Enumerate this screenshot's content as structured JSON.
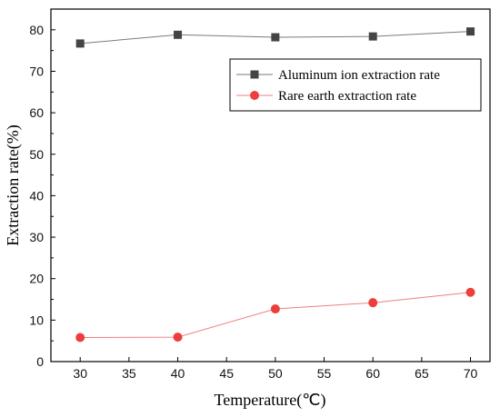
{
  "chart_data": {
    "type": "line",
    "title": "",
    "xlabel": "Temperature(℃)",
    "ylabel": "Extraction  rate(%)",
    "xlim": [
      27,
      72
    ],
    "ylim": [
      0,
      85
    ],
    "x": [
      30,
      40,
      50,
      60,
      70
    ],
    "xticks": [
      30,
      35,
      40,
      45,
      50,
      55,
      60,
      65,
      70
    ],
    "yticks": [
      0,
      10,
      20,
      30,
      40,
      50,
      60,
      70,
      80
    ],
    "grid": false,
    "legend_position": "top-right",
    "series": [
      {
        "name": "Aluminum ion extraction rate",
        "values": [
          76.7,
          78.8,
          78.2,
          78.4,
          79.6
        ],
        "color": "#444444",
        "line_color": "#7a7a7a",
        "marker": "square"
      },
      {
        "name": "Rare earth extraction rate",
        "values": [
          5.8,
          5.9,
          12.7,
          14.2,
          16.7
        ],
        "color": "#ee3d3d",
        "line_color": "#ef7f7f",
        "marker": "circle"
      }
    ]
  }
}
